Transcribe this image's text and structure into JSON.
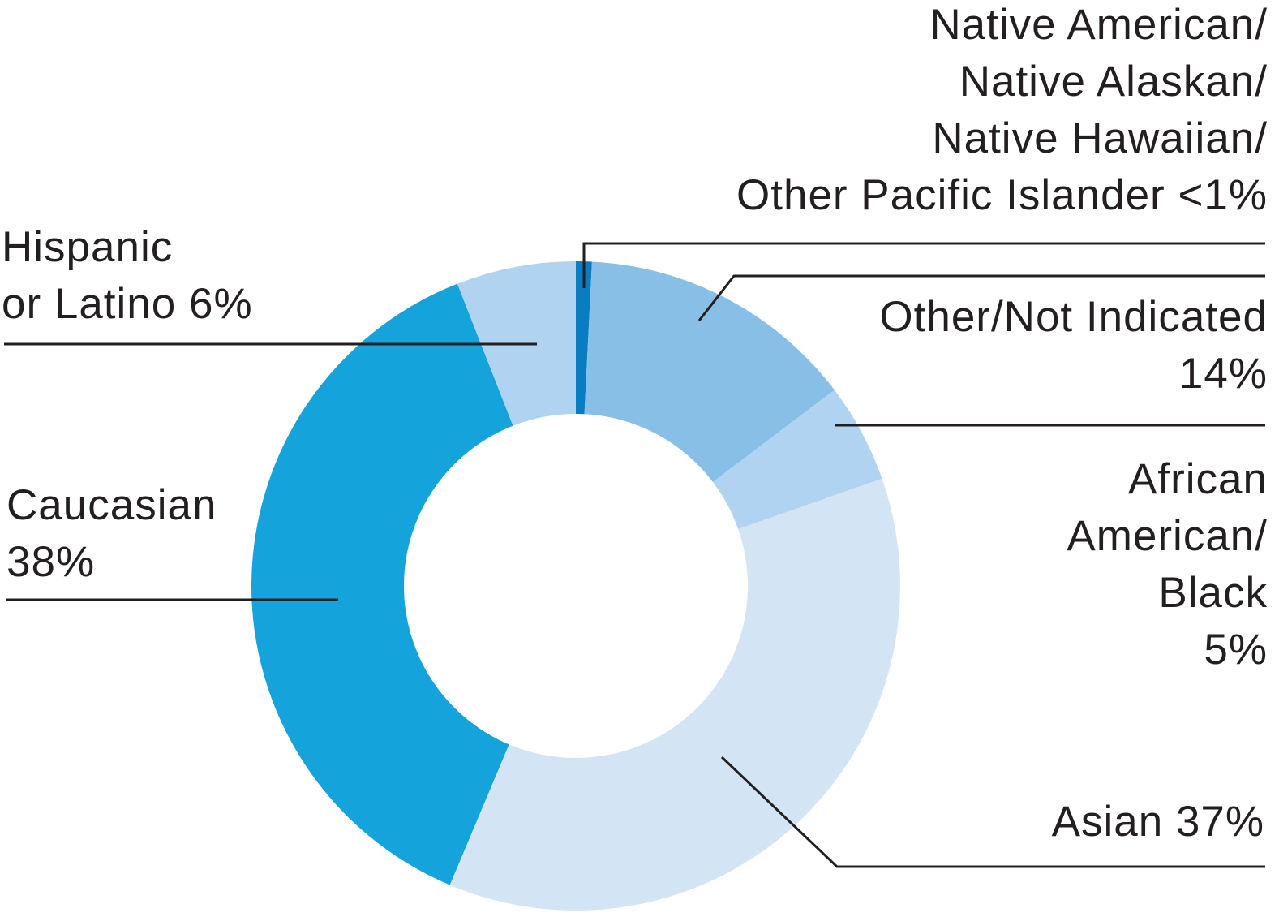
{
  "chart_data": {
    "type": "donut",
    "categories": [
      "Native American/\nNative Alaskan/\nNative Hawaiian/\nOther Pacific Islander",
      "Other/Not Indicated",
      "African\nAmerican/\nBlack",
      "Asian",
      "Caucasian",
      "Hispanic\nor Latino"
    ],
    "values": [
      0.8,
      14,
      5,
      37,
      38,
      6
    ],
    "value_labels": [
      "<1%",
      "14%",
      "5%",
      "37%",
      "38%",
      "6%"
    ],
    "colors": [
      "#0a7dc2",
      "#88bfe6",
      "#afd3f0",
      "#d3e5f5",
      "#15a3dc",
      "#afd3f0"
    ]
  }
}
